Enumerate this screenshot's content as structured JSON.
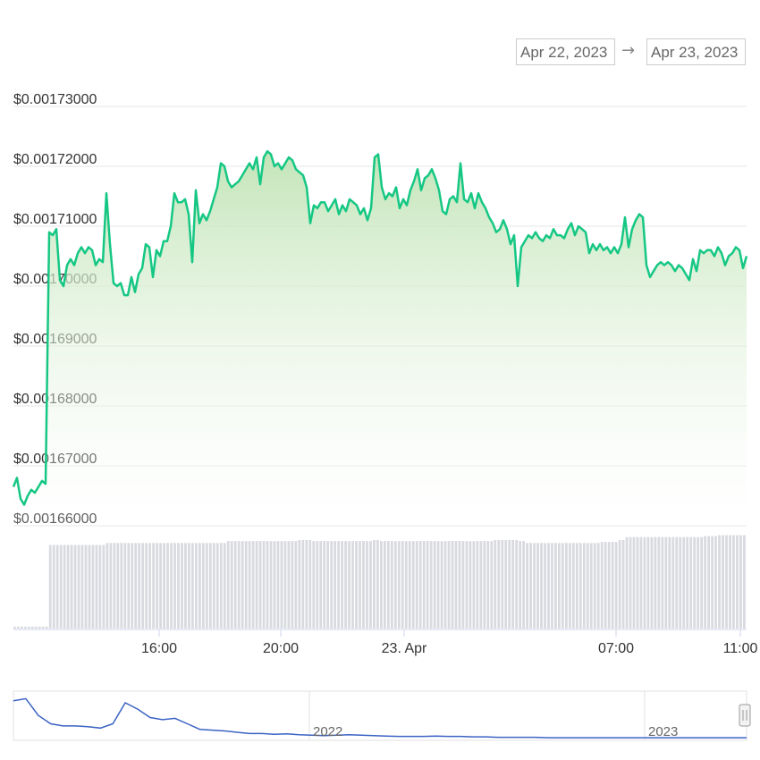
{
  "range_selector": {
    "from": "Apr 22, 2023",
    "arrow": "→",
    "to": "Apr 23, 2023"
  },
  "colors": {
    "line": "#16c784",
    "area_top": "#bfe3b4",
    "volume": "#d8dadf",
    "navigator": "#3b63c4"
  },
  "chart_data": {
    "type": "area",
    "title": "",
    "xlabel": "",
    "ylabel": "",
    "grid": true,
    "ylim": [
      0.00166,
      0.00173
    ],
    "y_ticks": [
      "$0.00173000",
      "$0.00172000",
      "$0.00171000",
      "$0.00170000",
      "$0.00169000",
      "$0.00168000",
      "$0.00167000",
      "$0.00166000"
    ],
    "x_ticks": [
      "16:00",
      "20:00",
      "23. Apr",
      "07:00",
      "11:00"
    ],
    "series": [
      {
        "values": [
          0.0016665,
          0.001668,
          0.0016645,
          0.0016635,
          0.001665,
          0.001666,
          0.0016655,
          0.0016665,
          0.0016675,
          0.001667,
          0.001709,
          0.0017085,
          0.0017095,
          0.001701,
          0.0017,
          0.0017035,
          0.0017045,
          0.0017035,
          0.0017055,
          0.0017065,
          0.0017055,
          0.0017065,
          0.001706,
          0.0017035,
          0.0017045,
          0.001704,
          0.0017155,
          0.001707,
          0.0017005,
          0.0017,
          0.0017005,
          0.0016985,
          0.0016985,
          0.0017015,
          0.001699,
          0.001702,
          0.001703,
          0.001707,
          0.0017065,
          0.0017015,
          0.001706,
          0.001705,
          0.0017075,
          0.0017075,
          0.00171,
          0.0017155,
          0.001714,
          0.001714,
          0.0017145,
          0.001712,
          0.001704,
          0.001716,
          0.0017105,
          0.001712,
          0.001711,
          0.0017125,
          0.0017145,
          0.0017165,
          0.0017205,
          0.00172,
          0.0017175,
          0.0017165,
          0.001717,
          0.0017175,
          0.0017185,
          0.0017195,
          0.0017205,
          0.0017195,
          0.0017215,
          0.001717,
          0.0017215,
          0.0017225,
          0.001722,
          0.00172,
          0.0017205,
          0.0017195,
          0.0017205,
          0.0017215,
          0.001721,
          0.0017195,
          0.001719,
          0.0017185,
          0.0017165,
          0.0017105,
          0.0017135,
          0.001713,
          0.001714,
          0.001714,
          0.0017125,
          0.0017135,
          0.0017145,
          0.001712,
          0.0017135,
          0.0017125,
          0.0017145,
          0.001714,
          0.0017135,
          0.001712,
          0.001713,
          0.001711,
          0.001713,
          0.0017215,
          0.001722,
          0.0017165,
          0.0017145,
          0.0017155,
          0.001715,
          0.0017165,
          0.001713,
          0.0017145,
          0.0017135,
          0.001716,
          0.0017175,
          0.0017195,
          0.001716,
          0.001718,
          0.0017185,
          0.0017195,
          0.001718,
          0.001716,
          0.0017125,
          0.001712,
          0.0017145,
          0.001715,
          0.001714,
          0.0017205,
          0.0017145,
          0.001714,
          0.0017155,
          0.001713,
          0.0017155,
          0.001714,
          0.001713,
          0.0017115,
          0.0017105,
          0.001709,
          0.0017095,
          0.001711,
          0.0017095,
          0.001707,
          0.0017085,
          0.0017,
          0.0017065,
          0.0017075,
          0.0017085,
          0.001708,
          0.001709,
          0.001708,
          0.0017075,
          0.0017085,
          0.001708,
          0.0017095,
          0.0017085,
          0.0017085,
          0.001708,
          0.0017095,
          0.0017105,
          0.0017085,
          0.00171,
          0.0017095,
          0.001709,
          0.0017055,
          0.001707,
          0.001706,
          0.001707,
          0.001706,
          0.0017065,
          0.0017055,
          0.0017065,
          0.0017055,
          0.001707,
          0.0017115,
          0.0017065,
          0.0017095,
          0.001711,
          0.001712,
          0.0017115,
          0.0017035,
          0.0017015,
          0.0017025,
          0.0017035,
          0.001704,
          0.0017035,
          0.001704,
          0.0017035,
          0.0017025,
          0.0017035,
          0.001703,
          0.001702,
          0.001701,
          0.0017045,
          0.0017025,
          0.001706,
          0.0017055,
          0.001706,
          0.001706,
          0.001705,
          0.0017065,
          0.0017055,
          0.0017035,
          0.001705,
          0.0017055,
          0.0017065,
          0.001706,
          0.001703,
          0.001705
        ]
      }
    ],
    "volume": [
      0.02,
      0.02,
      0.02,
      0.02,
      0.02,
      0.02,
      0.02,
      0.02,
      0.02,
      0.02,
      0.85,
      0.85,
      0.85,
      0.85,
      0.85,
      0.85,
      0.85,
      0.85,
      0.85,
      0.85,
      0.85,
      0.85,
      0.85,
      0.85,
      0.85,
      0.85,
      0.87,
      0.87,
      0.87,
      0.87,
      0.87,
      0.87,
      0.87,
      0.87,
      0.87,
      0.87,
      0.87,
      0.87,
      0.87,
      0.87,
      0.87,
      0.87,
      0.87,
      0.87,
      0.87,
      0.87,
      0.87,
      0.87,
      0.87,
      0.87,
      0.87,
      0.87,
      0.87,
      0.87,
      0.87,
      0.87,
      0.87,
      0.87,
      0.87,
      0.87,
      0.89,
      0.89,
      0.89,
      0.89,
      0.89,
      0.89,
      0.89,
      0.89,
      0.89,
      0.89,
      0.89,
      0.89,
      0.89,
      0.89,
      0.89,
      0.89,
      0.89,
      0.89,
      0.89,
      0.89,
      0.9,
      0.9,
      0.9,
      0.9,
      0.89,
      0.89,
      0.89,
      0.89,
      0.89,
      0.89,
      0.89,
      0.89,
      0.89,
      0.89,
      0.89,
      0.89,
      0.89,
      0.89,
      0.89,
      0.89,
      0.89,
      0.9,
      0.9,
      0.89,
      0.89,
      0.89,
      0.89,
      0.89,
      0.89,
      0.89,
      0.89,
      0.89,
      0.89,
      0.89,
      0.89,
      0.89,
      0.89,
      0.89,
      0.89,
      0.89,
      0.89,
      0.89,
      0.89,
      0.89,
      0.89,
      0.89,
      0.89,
      0.89,
      0.89,
      0.89,
      0.89,
      0.89,
      0.89,
      0.89,
      0.89,
      0.9,
      0.9,
      0.9,
      0.9,
      0.9,
      0.9,
      0.9,
      0.89,
      0.89,
      0.87,
      0.87,
      0.87,
      0.87,
      0.87,
      0.87,
      0.87,
      0.87,
      0.87,
      0.87,
      0.87,
      0.87,
      0.87,
      0.87,
      0.87,
      0.87,
      0.87,
      0.87,
      0.87,
      0.87,
      0.87,
      0.88,
      0.88,
      0.88,
      0.88,
      0.88,
      0.9,
      0.9,
      0.93,
      0.93,
      0.93,
      0.93,
      0.93,
      0.93,
      0.93,
      0.93,
      0.93,
      0.93,
      0.93,
      0.93,
      0.93,
      0.93,
      0.93,
      0.93,
      0.93,
      0.93,
      0.93,
      0.93,
      0.93,
      0.93,
      0.94,
      0.94,
      0.94,
      0.94,
      0.95,
      0.95,
      0.95,
      0.95,
      0.95,
      0.95,
      0.95,
      0.95
    ]
  },
  "navigator": {
    "labels": [
      "2022",
      "2023"
    ],
    "values": [
      0.9,
      0.95,
      0.55,
      0.35,
      0.3,
      0.3,
      0.28,
      0.25,
      0.35,
      0.85,
      0.7,
      0.5,
      0.45,
      0.48,
      0.35,
      0.22,
      0.2,
      0.18,
      0.15,
      0.12,
      0.12,
      0.1,
      0.11,
      0.09,
      0.08,
      0.07,
      0.08,
      0.09,
      0.08,
      0.07,
      0.06,
      0.05,
      0.05,
      0.05,
      0.06,
      0.05,
      0.05,
      0.04,
      0.04,
      0.03,
      0.03,
      0.03,
      0.03,
      0.02,
      0.02,
      0.02,
      0.02,
      0.02,
      0.02,
      0.02,
      0.02,
      0.02,
      0.02,
      0.02,
      0.02,
      0.02,
      0.02,
      0.02,
      0.02,
      0.02
    ]
  }
}
